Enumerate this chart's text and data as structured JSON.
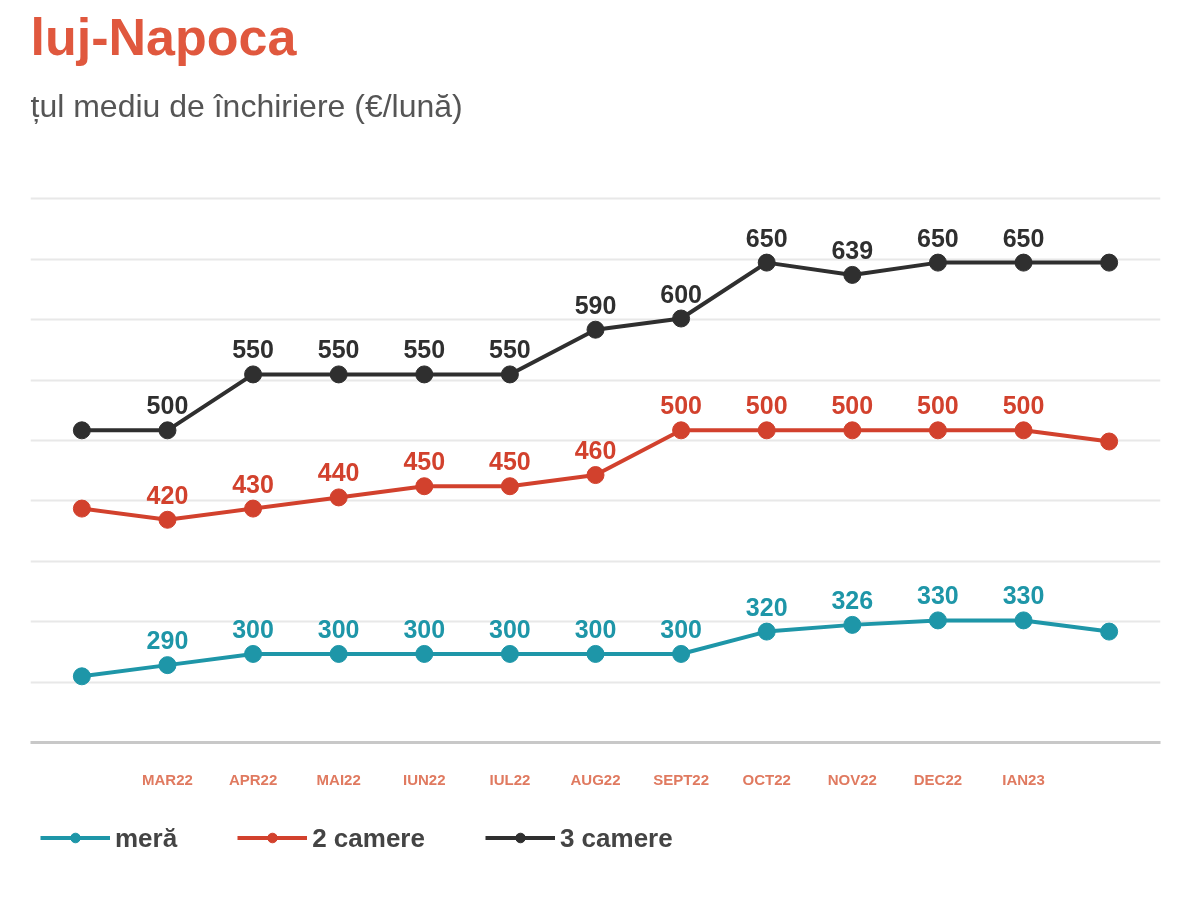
{
  "chart_data": {
    "type": "line",
    "title": "luj-Napoca",
    "subtitle": "țul mediu de închiriere (€/lună)",
    "categories": [
      null,
      "MAR22",
      "APR22",
      "MAI22",
      "IUN22",
      "IUL22",
      "AUG22",
      "SEPT22",
      "OCT22",
      "NOV22",
      "DEC22",
      "IAN23",
      null
    ],
    "series": [
      {
        "name": "meră",
        "color": "#1e96a8",
        "values": [
          280,
          290,
          300,
          300,
          300,
          300,
          300,
          300,
          320,
          326,
          330,
          330,
          320
        ],
        "value_labels": [
          null,
          "290",
          "300",
          "300",
          "300",
          "300",
          "300",
          "300",
          "320",
          "326",
          "330",
          "330",
          null
        ]
      },
      {
        "name": "2 camere",
        "color": "#d2412d",
        "values": [
          430,
          420,
          430,
          440,
          450,
          450,
          460,
          500,
          500,
          500,
          500,
          500,
          490
        ],
        "value_labels": [
          null,
          "420",
          "430",
          "440",
          "450",
          "450",
          "460",
          "500",
          "500",
          "500",
          "500",
          "500",
          null
        ]
      },
      {
        "name": "3 camere",
        "color": "#2f2f2f",
        "values": [
          500,
          500,
          550,
          550,
          550,
          550,
          590,
          600,
          650,
          639,
          650,
          650,
          650
        ],
        "value_labels": [
          null,
          "500",
          "550",
          "550",
          "550",
          "550",
          "590",
          "600",
          "650",
          "639",
          "650",
          "650",
          null
        ]
      }
    ],
    "marker": "circle",
    "line_style": "solid",
    "grid": "y",
    "legend": "bottom left",
    "tick_labels": "x"
  }
}
